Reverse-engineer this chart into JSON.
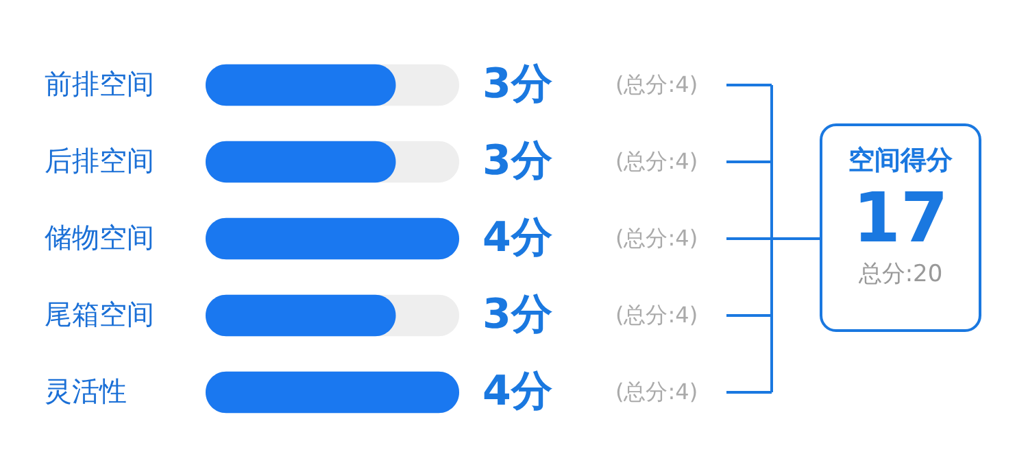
{
  "chart_data": {
    "type": "bar",
    "orientation": "horizontal",
    "categories": [
      "前排空间",
      "后排空间",
      "储物空间",
      "尾箱空间",
      "灵活性"
    ],
    "values": [
      3,
      3,
      4,
      3,
      4
    ],
    "value_labels": [
      "3分",
      "3分",
      "4分",
      "3分",
      "4分"
    ],
    "color": "#1a78f0",
    "xlim": [
      0,
      4
    ],
    "tick_labels": "y",
    "grid": false,
    "annotations": [
      "(总分:4)",
      "(总分:4)",
      "(总分:4)",
      "(总分:4)",
      "(总分:4)",
      "空间得分",
      "17",
      "总分:20"
    ]
  }
}
